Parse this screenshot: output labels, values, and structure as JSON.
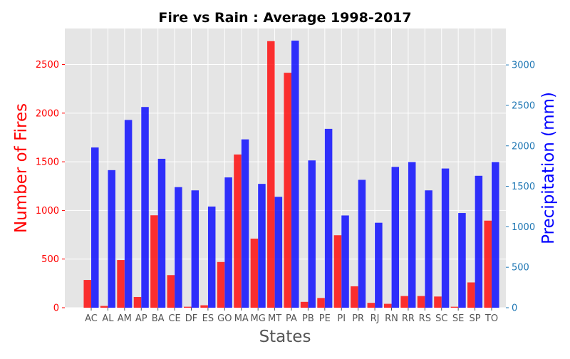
{
  "chart_data": {
    "type": "bar",
    "title": "Fire vs Rain : Average 1998-2017",
    "xlabel": "States",
    "ylabel_left": "Number of Fires",
    "ylabel_right": "Precipitation (mm)",
    "categories": [
      "AC",
      "AL",
      "AM",
      "AP",
      "BA",
      "CE",
      "DF",
      "ES",
      "GO",
      "MA",
      "MG",
      "MT",
      "PA",
      "PB",
      "PE",
      "PI",
      "PR",
      "RJ",
      "RN",
      "RR",
      "RS",
      "SC",
      "SE",
      "SP",
      "TO"
    ],
    "series": [
      {
        "axis": "left",
        "color": "#ff0000",
        "values": [
          285,
          18,
          490,
          110,
          950,
          335,
          10,
          25,
          470,
          1575,
          710,
          2740,
          2415,
          60,
          100,
          745,
          220,
          50,
          40,
          120,
          120,
          115,
          10,
          260,
          895
        ]
      },
      {
        "axis": "right",
        "color": "#0000ff",
        "values": [
          1980,
          1700,
          2320,
          2480,
          1840,
          1490,
          1450,
          1250,
          1610,
          2080,
          1530,
          1370,
          3300,
          1820,
          2210,
          1140,
          1580,
          1050,
          1740,
          1800,
          1450,
          1720,
          1170,
          1630,
          1800
        ]
      }
    ],
    "ylim_left": [
      0,
      2870
    ],
    "ylim_right": [
      0,
      3450
    ],
    "yticks_left": [
      0,
      500,
      1000,
      1500,
      2000,
      2500
    ],
    "yticks_right": [
      0,
      500,
      1000,
      1500,
      2000,
      2500,
      3000
    ],
    "grid": true,
    "colors": {
      "plot_bg": "#e5e5e5",
      "grid": "#ffffff",
      "left_axis": "#ff0000",
      "right_axis": "#1f77b4",
      "right_label": "#0000ff",
      "tick_text": "#555555"
    }
  }
}
